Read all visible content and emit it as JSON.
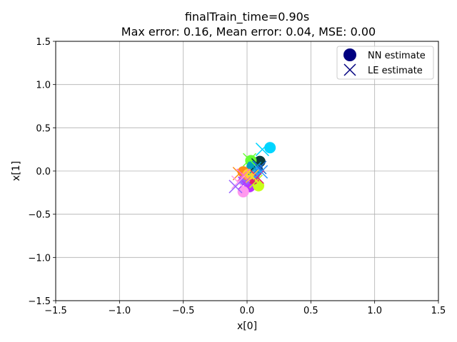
{
  "chart_data": {
    "type": "scatter",
    "title_line1": "finalTrain_time=0.90s",
    "title_line2": "Max error: 0.16, Mean error: 0.04, MSE: 0.00",
    "xlabel": "x[0]",
    "ylabel": "x[1]",
    "xlim": [
      -1.5,
      1.5
    ],
    "ylim": [
      -1.5,
      1.5
    ],
    "xticks": [
      -1.5,
      -1.0,
      -0.5,
      0.0,
      0.5,
      1.0,
      1.5
    ],
    "yticks": [
      -1.5,
      -1.0,
      -0.5,
      0.0,
      0.5,
      1.0,
      1.5
    ],
    "xtick_labels": [
      "−1.5",
      "−1.0",
      "−0.5",
      "0.0",
      "0.5",
      "1.0",
      "1.5"
    ],
    "ytick_labels": [
      "−1.5",
      "−1.0",
      "−0.5",
      "0.0",
      "0.5",
      "1.0",
      "1.5"
    ],
    "grid": true,
    "legend_position": "top-right",
    "legend": [
      {
        "label": "NN estimate",
        "marker": "circle",
        "color": "#000080"
      },
      {
        "label": "LE estimate",
        "marker": "x",
        "color": "#000080"
      }
    ],
    "points": [
      {
        "color": "#00d5ff",
        "nn": [
          0.18,
          0.27
        ],
        "le": [
          0.12,
          0.25
        ]
      },
      {
        "color": "#0a3a3a",
        "nn": [
          0.1,
          0.11
        ],
        "le": [
          0.08,
          0.08
        ]
      },
      {
        "color": "#66ff33",
        "nn": [
          0.03,
          0.12
        ],
        "le": [
          0.02,
          0.13
        ]
      },
      {
        "color": "#1e6fd9",
        "nn": [
          0.08,
          0.02
        ],
        "le": [
          0.1,
          0.04
        ]
      },
      {
        "color": "#00a0c0",
        "nn": [
          0.04,
          0.05
        ],
        "le": [
          0.06,
          0.03
        ]
      },
      {
        "color": "#ff8c1a",
        "nn": [
          -0.03,
          -0.01
        ],
        "le": [
          -0.06,
          -0.03
        ]
      },
      {
        "color": "#ff66cc",
        "nn": [
          0.0,
          -0.06
        ],
        "le": [
          -0.03,
          -0.05
        ]
      },
      {
        "color": "#b833ff",
        "nn": [
          0.02,
          -0.18
        ],
        "le": [
          -0.02,
          -0.14
        ]
      },
      {
        "color": "#ff99ee",
        "nn": [
          -0.03,
          -0.24
        ],
        "le": [
          -0.07,
          -0.13
        ]
      },
      {
        "color": "#c8ff1a",
        "nn": [
          0.09,
          -0.17
        ],
        "le": [
          0.07,
          -0.12
        ]
      },
      {
        "color": "#e61f6f",
        "nn": [
          0.05,
          -0.09
        ],
        "le": [
          0.08,
          -0.07
        ]
      },
      {
        "color": "#9966ff",
        "nn": [
          -0.02,
          -0.1
        ],
        "le": [
          -0.09,
          -0.18
        ]
      },
      {
        "color": "#3399ff",
        "nn": [
          0.06,
          -0.03
        ],
        "le": [
          0.11,
          -0.01
        ]
      },
      {
        "color": "#ffcc33",
        "nn": [
          0.01,
          -0.04
        ],
        "le": [
          0.04,
          -0.06
        ]
      }
    ]
  }
}
